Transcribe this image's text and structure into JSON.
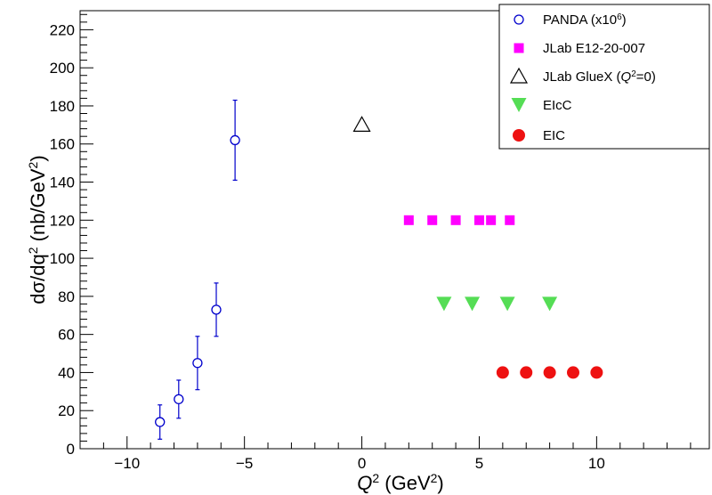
{
  "chart_data": {
    "type": "scatter",
    "xlabel": {
      "base": "Q",
      "sup": "2",
      "unit_pre": " (GeV",
      "unit_sup": "2",
      "unit_post": ")"
    },
    "ylabel": {
      "main": "dσ/dq",
      "sup1": "2",
      "mid": " (nb/GeV",
      "sup2": "2",
      "post": ")"
    },
    "xlim": [
      -12,
      14.8
    ],
    "ylim": [
      0,
      230
    ],
    "x_major_ticks": [
      -10,
      -5,
      0,
      5,
      10
    ],
    "x_tick_labels": [
      "−10",
      "−5",
      "0",
      "5",
      "10"
    ],
    "y_major_ticks": [
      0,
      20,
      40,
      60,
      80,
      100,
      120,
      140,
      160,
      180,
      200,
      220
    ],
    "y_tick_labels": [
      "0",
      "20",
      "40",
      "60",
      "80",
      "100",
      "120",
      "140",
      "160",
      "180",
      "200",
      "220"
    ],
    "grid": false,
    "legend_position": "top-right",
    "series": [
      {
        "name": "PANDA (x10^6)",
        "legend": {
          "pre": "PANDA (x10",
          "sup": "6",
          "post": ")"
        },
        "marker": "open-circle",
        "color": "#0000cc",
        "points": [
          {
            "x": -8.6,
            "y": 14,
            "err": 9
          },
          {
            "x": -7.8,
            "y": 26,
            "err": 10
          },
          {
            "x": -7.0,
            "y": 45,
            "err": 14
          },
          {
            "x": -6.2,
            "y": 73,
            "err": 14
          },
          {
            "x": -5.4,
            "y": 162,
            "err": 21
          }
        ]
      },
      {
        "name": "JLab E12-20-007",
        "legend": {
          "pre": "JLab E12-20-007",
          "sup": "",
          "post": ""
        },
        "marker": "filled-square",
        "color": "#ff00ff",
        "points": [
          {
            "x": 2.0,
            "y": 120
          },
          {
            "x": 3.0,
            "y": 120
          },
          {
            "x": 4.0,
            "y": 120
          },
          {
            "x": 5.0,
            "y": 120
          },
          {
            "x": 5.5,
            "y": 120
          },
          {
            "x": 6.3,
            "y": 120
          }
        ]
      },
      {
        "name": "JLab GlueX (Q^2=0)",
        "legend": {
          "pre": "JLab GlueX (",
          "italic": "Q",
          "sup": "2",
          "post": "=0)"
        },
        "marker": "open-triangle-up",
        "color": "#000000",
        "points": [
          {
            "x": 0.0,
            "y": 170
          }
        ]
      },
      {
        "name": "EIcC",
        "legend": {
          "pre": "EIcC",
          "sup": "",
          "post": ""
        },
        "marker": "filled-triangle-down",
        "color": "#55dd55",
        "points": [
          {
            "x": 3.5,
            "y": 76
          },
          {
            "x": 4.7,
            "y": 76
          },
          {
            "x": 6.2,
            "y": 76
          },
          {
            "x": 8.0,
            "y": 76
          }
        ]
      },
      {
        "name": "EIC",
        "legend": {
          "pre": "EIC",
          "sup": "",
          "post": ""
        },
        "marker": "filled-circle",
        "color": "#ee1111",
        "points": [
          {
            "x": 6.0,
            "y": 40
          },
          {
            "x": 7.0,
            "y": 40
          },
          {
            "x": 8.0,
            "y": 40
          },
          {
            "x": 9.0,
            "y": 40
          },
          {
            "x": 10.0,
            "y": 40
          }
        ]
      }
    ]
  }
}
